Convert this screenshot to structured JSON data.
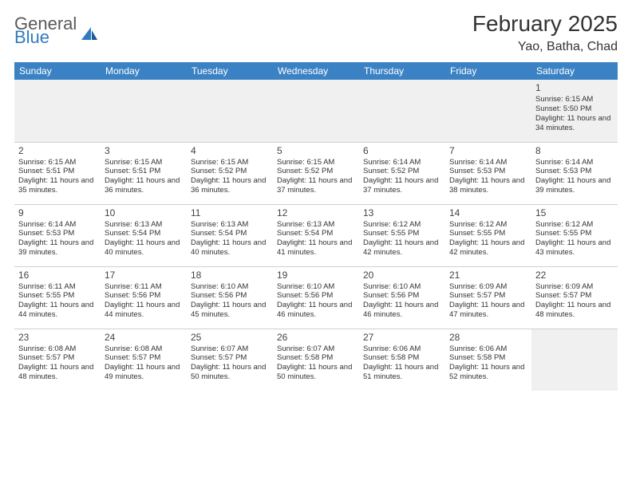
{
  "brand": {
    "general": "General",
    "blue": "Blue"
  },
  "title": {
    "month": "February 2025",
    "location": "Yao, Batha, Chad"
  },
  "colors": {
    "header_bg": "#3b82c4",
    "header_text": "#ffffff",
    "border": "#d0d0d0",
    "text": "#333333",
    "firstrow_bg": "#f0f0f0",
    "brand_blue": "#2f7bbf",
    "brand_gray": "#5a5a5a"
  },
  "weekdays": [
    "Sunday",
    "Monday",
    "Tuesday",
    "Wednesday",
    "Thursday",
    "Friday",
    "Saturday"
  ],
  "weeks": [
    [
      null,
      null,
      null,
      null,
      null,
      null,
      {
        "day": "1",
        "sunrise": "Sunrise: 6:15 AM",
        "sunset": "Sunset: 5:50 PM",
        "daylight": "Daylight: 11 hours and 34 minutes."
      }
    ],
    [
      {
        "day": "2",
        "sunrise": "Sunrise: 6:15 AM",
        "sunset": "Sunset: 5:51 PM",
        "daylight": "Daylight: 11 hours and 35 minutes."
      },
      {
        "day": "3",
        "sunrise": "Sunrise: 6:15 AM",
        "sunset": "Sunset: 5:51 PM",
        "daylight": "Daylight: 11 hours and 36 minutes."
      },
      {
        "day": "4",
        "sunrise": "Sunrise: 6:15 AM",
        "sunset": "Sunset: 5:52 PM",
        "daylight": "Daylight: 11 hours and 36 minutes."
      },
      {
        "day": "5",
        "sunrise": "Sunrise: 6:15 AM",
        "sunset": "Sunset: 5:52 PM",
        "daylight": "Daylight: 11 hours and 37 minutes."
      },
      {
        "day": "6",
        "sunrise": "Sunrise: 6:14 AM",
        "sunset": "Sunset: 5:52 PM",
        "daylight": "Daylight: 11 hours and 37 minutes."
      },
      {
        "day": "7",
        "sunrise": "Sunrise: 6:14 AM",
        "sunset": "Sunset: 5:53 PM",
        "daylight": "Daylight: 11 hours and 38 minutes."
      },
      {
        "day": "8",
        "sunrise": "Sunrise: 6:14 AM",
        "sunset": "Sunset: 5:53 PM",
        "daylight": "Daylight: 11 hours and 39 minutes."
      }
    ],
    [
      {
        "day": "9",
        "sunrise": "Sunrise: 6:14 AM",
        "sunset": "Sunset: 5:53 PM",
        "daylight": "Daylight: 11 hours and 39 minutes."
      },
      {
        "day": "10",
        "sunrise": "Sunrise: 6:13 AM",
        "sunset": "Sunset: 5:54 PM",
        "daylight": "Daylight: 11 hours and 40 minutes."
      },
      {
        "day": "11",
        "sunrise": "Sunrise: 6:13 AM",
        "sunset": "Sunset: 5:54 PM",
        "daylight": "Daylight: 11 hours and 40 minutes."
      },
      {
        "day": "12",
        "sunrise": "Sunrise: 6:13 AM",
        "sunset": "Sunset: 5:54 PM",
        "daylight": "Daylight: 11 hours and 41 minutes."
      },
      {
        "day": "13",
        "sunrise": "Sunrise: 6:12 AM",
        "sunset": "Sunset: 5:55 PM",
        "daylight": "Daylight: 11 hours and 42 minutes."
      },
      {
        "day": "14",
        "sunrise": "Sunrise: 6:12 AM",
        "sunset": "Sunset: 5:55 PM",
        "daylight": "Daylight: 11 hours and 42 minutes."
      },
      {
        "day": "15",
        "sunrise": "Sunrise: 6:12 AM",
        "sunset": "Sunset: 5:55 PM",
        "daylight": "Daylight: 11 hours and 43 minutes."
      }
    ],
    [
      {
        "day": "16",
        "sunrise": "Sunrise: 6:11 AM",
        "sunset": "Sunset: 5:55 PM",
        "daylight": "Daylight: 11 hours and 44 minutes."
      },
      {
        "day": "17",
        "sunrise": "Sunrise: 6:11 AM",
        "sunset": "Sunset: 5:56 PM",
        "daylight": "Daylight: 11 hours and 44 minutes."
      },
      {
        "day": "18",
        "sunrise": "Sunrise: 6:10 AM",
        "sunset": "Sunset: 5:56 PM",
        "daylight": "Daylight: 11 hours and 45 minutes."
      },
      {
        "day": "19",
        "sunrise": "Sunrise: 6:10 AM",
        "sunset": "Sunset: 5:56 PM",
        "daylight": "Daylight: 11 hours and 46 minutes."
      },
      {
        "day": "20",
        "sunrise": "Sunrise: 6:10 AM",
        "sunset": "Sunset: 5:56 PM",
        "daylight": "Daylight: 11 hours and 46 minutes."
      },
      {
        "day": "21",
        "sunrise": "Sunrise: 6:09 AM",
        "sunset": "Sunset: 5:57 PM",
        "daylight": "Daylight: 11 hours and 47 minutes."
      },
      {
        "day": "22",
        "sunrise": "Sunrise: 6:09 AM",
        "sunset": "Sunset: 5:57 PM",
        "daylight": "Daylight: 11 hours and 48 minutes."
      }
    ],
    [
      {
        "day": "23",
        "sunrise": "Sunrise: 6:08 AM",
        "sunset": "Sunset: 5:57 PM",
        "daylight": "Daylight: 11 hours and 48 minutes."
      },
      {
        "day": "24",
        "sunrise": "Sunrise: 6:08 AM",
        "sunset": "Sunset: 5:57 PM",
        "daylight": "Daylight: 11 hours and 49 minutes."
      },
      {
        "day": "25",
        "sunrise": "Sunrise: 6:07 AM",
        "sunset": "Sunset: 5:57 PM",
        "daylight": "Daylight: 11 hours and 50 minutes."
      },
      {
        "day": "26",
        "sunrise": "Sunrise: 6:07 AM",
        "sunset": "Sunset: 5:58 PM",
        "daylight": "Daylight: 11 hours and 50 minutes."
      },
      {
        "day": "27",
        "sunrise": "Sunrise: 6:06 AM",
        "sunset": "Sunset: 5:58 PM",
        "daylight": "Daylight: 11 hours and 51 minutes."
      },
      {
        "day": "28",
        "sunrise": "Sunrise: 6:06 AM",
        "sunset": "Sunset: 5:58 PM",
        "daylight": "Daylight: 11 hours and 52 minutes."
      },
      null
    ]
  ]
}
